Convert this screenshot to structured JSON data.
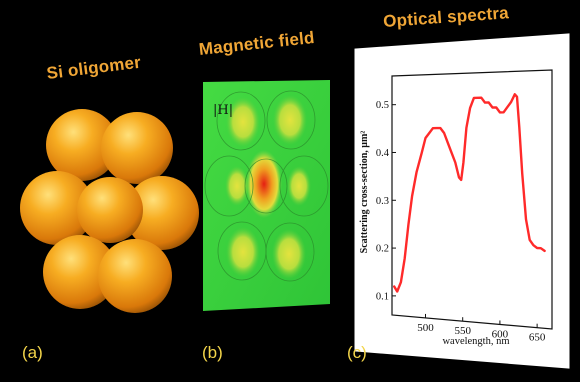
{
  "titles": {
    "oligomer": "Si oligomer",
    "field": "Magnetic field",
    "spectra": "Optical spectra"
  },
  "labels": {
    "a": "(a)",
    "b": "(b)",
    "c": "(c)"
  },
  "field_map": {
    "symbol": "|H|"
  },
  "colors": {
    "background": "#000000",
    "title": "#f0a636",
    "panel_label": "#f3d54a",
    "sphere": "#f5a21c",
    "field_background": "#3cd63c",
    "curve": "#ff2a2a"
  },
  "chart_data": {
    "type": "line",
    "xlabel": "wavelength, nm",
    "ylabel": "Scattering cross-section, μm²",
    "xlim": [
      455,
      670
    ],
    "ylim": [
      0.06,
      0.56
    ],
    "xticks": [
      500,
      550,
      600,
      650
    ],
    "yticks": [
      0.1,
      0.2,
      0.3,
      0.4,
      0.5
    ],
    "grid": false,
    "series": [
      {
        "x": [
          458,
          462,
          467,
          472,
          477,
          482,
          488,
          495,
          500,
          505,
          510,
          515,
          520,
          525,
          530,
          535,
          540,
          545,
          548,
          551,
          555,
          560,
          565,
          570,
          575,
          580,
          585,
          590,
          595,
          600,
          605,
          610,
          615,
          620,
          623,
          626,
          630,
          635,
          640,
          645,
          650,
          655,
          660
        ],
        "y": [
          0.12,
          0.11,
          0.13,
          0.18,
          0.25,
          0.31,
          0.36,
          0.4,
          0.43,
          0.44,
          0.45,
          0.45,
          0.45,
          0.44,
          0.42,
          0.4,
          0.38,
          0.35,
          0.345,
          0.38,
          0.45,
          0.49,
          0.51,
          0.51,
          0.51,
          0.5,
          0.5,
          0.49,
          0.49,
          0.48,
          0.48,
          0.49,
          0.5,
          0.515,
          0.51,
          0.45,
          0.36,
          0.27,
          0.23,
          0.22,
          0.215,
          0.215,
          0.21
        ]
      }
    ]
  }
}
